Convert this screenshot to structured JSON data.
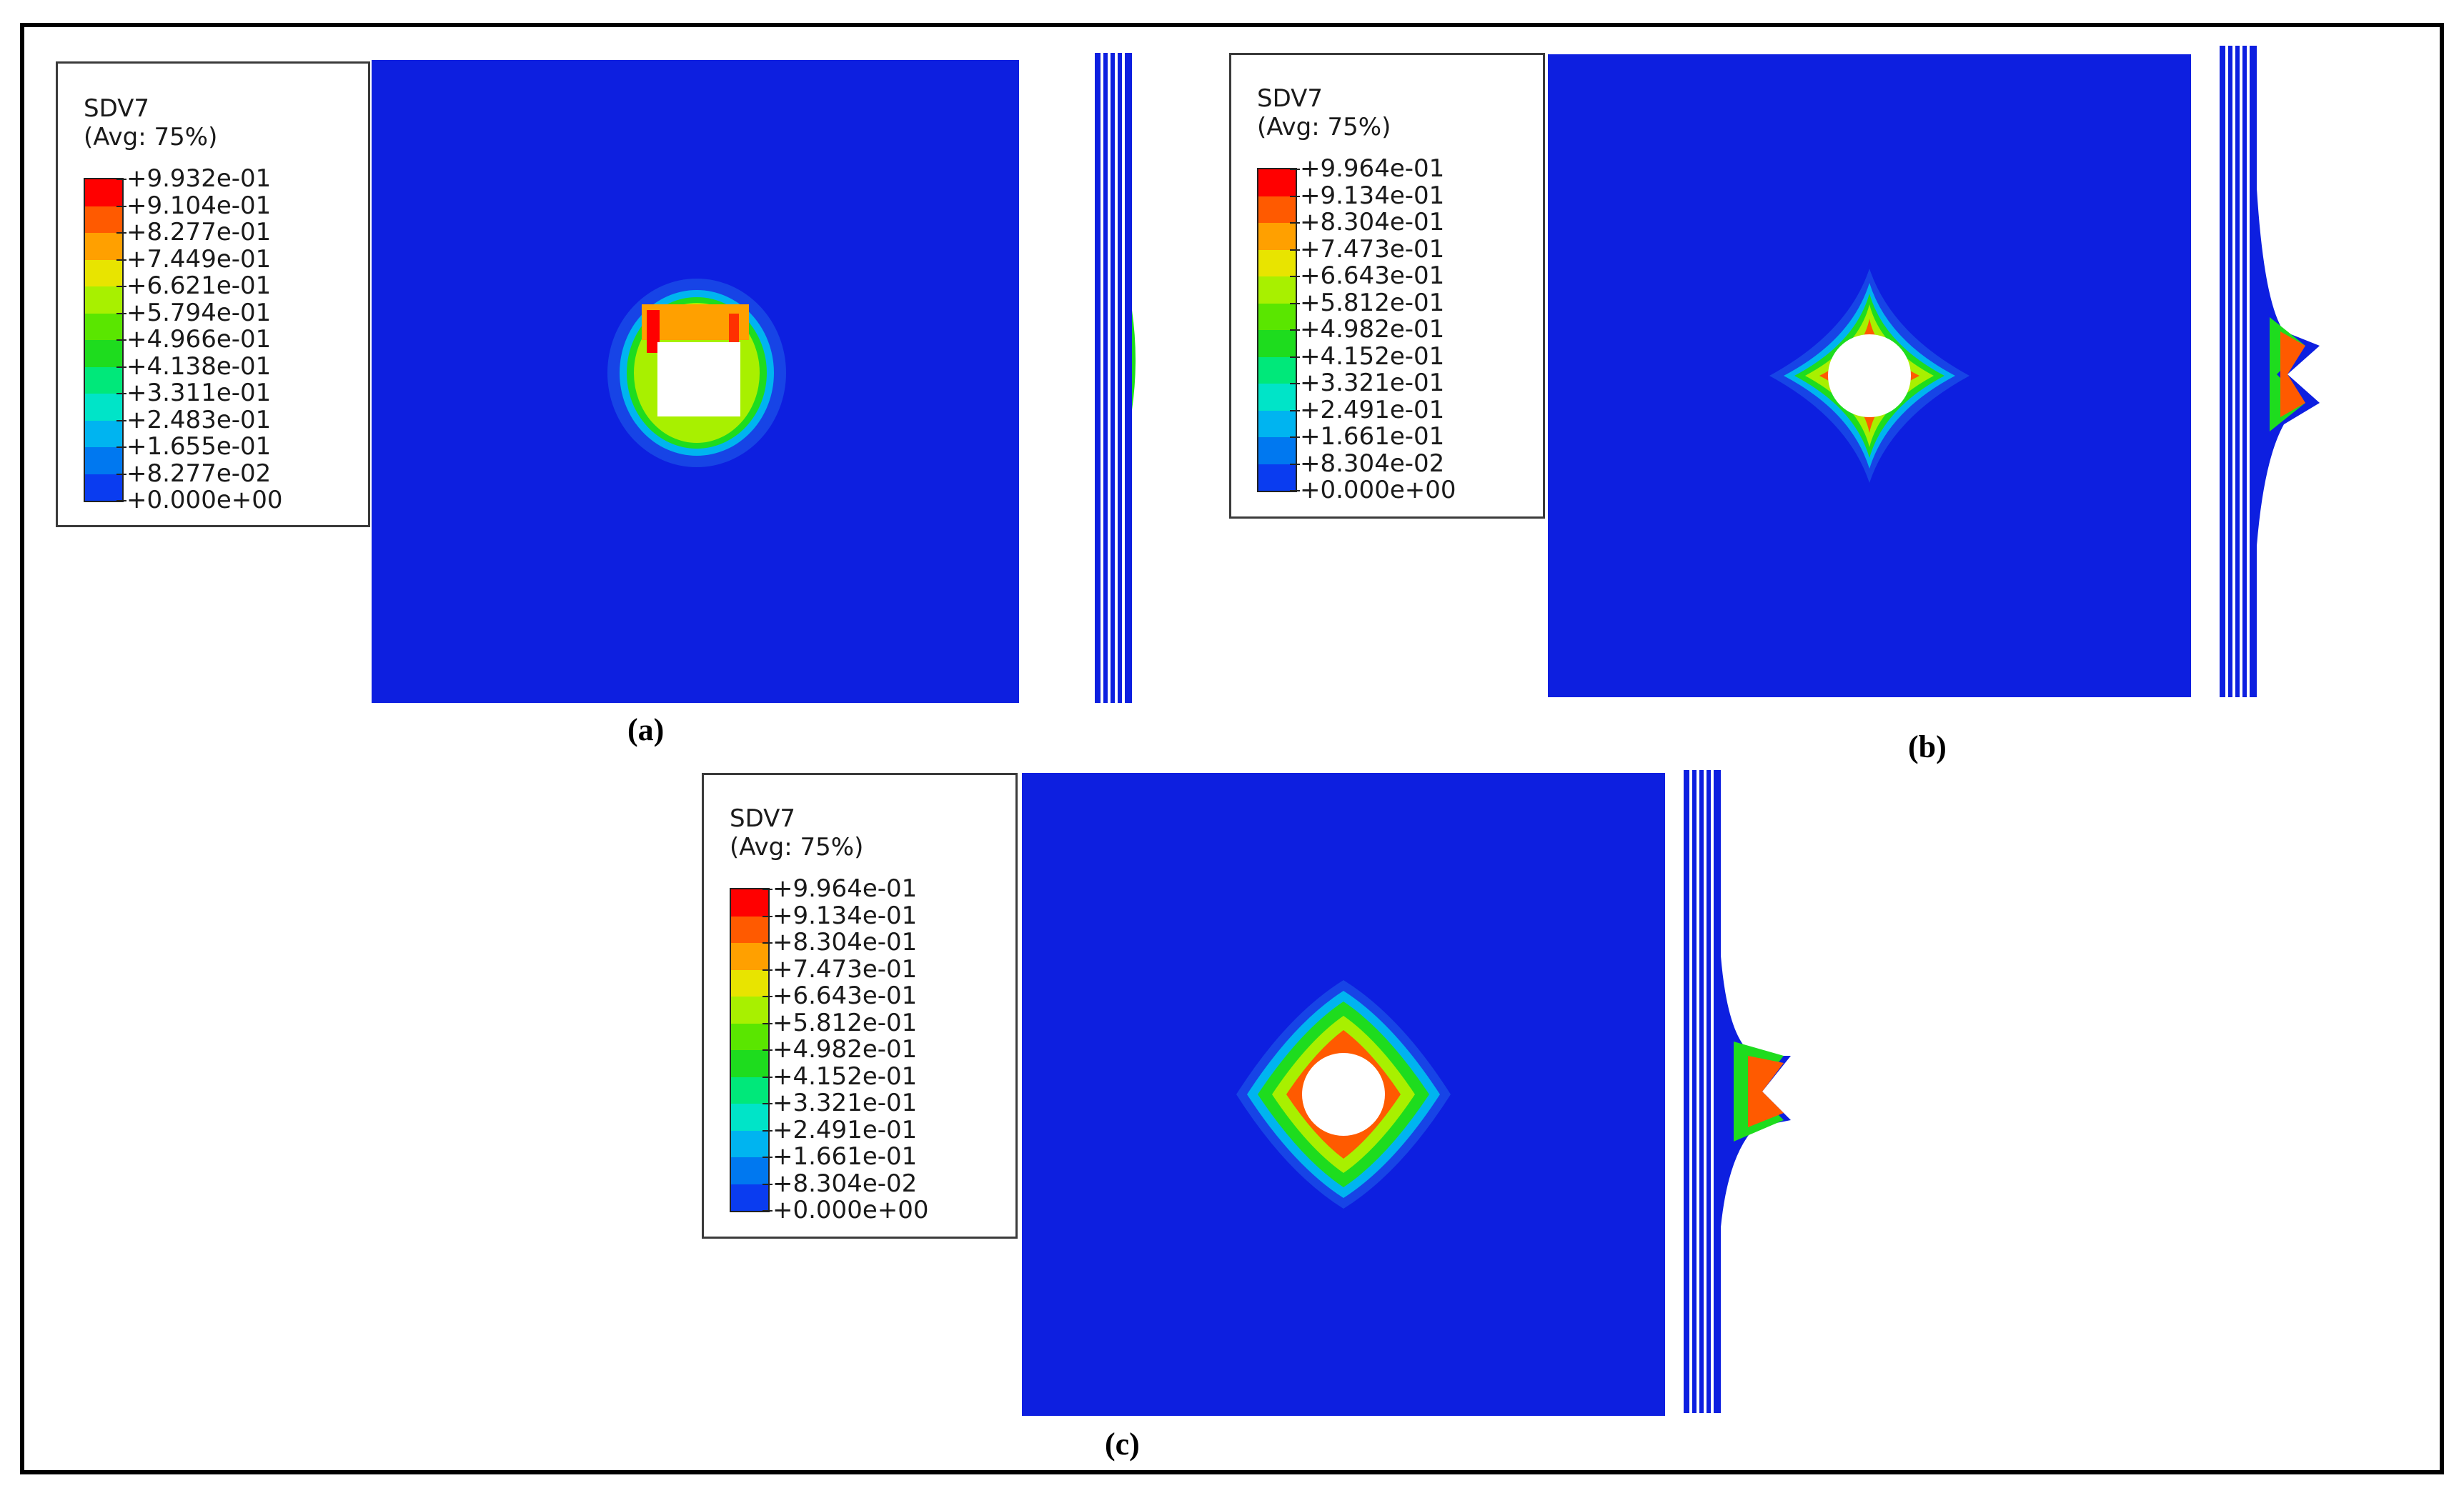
{
  "panels": [
    {
      "id": "a",
      "caption": "(a)",
      "legend": {
        "variable": "SDV7",
        "averaging": "(Avg: 75%)",
        "values": [
          "+9.932e-01",
          "+9.104e-01",
          "+8.277e-01",
          "+7.449e-01",
          "+6.621e-01",
          "+5.794e-01",
          "+4.966e-01",
          "+4.138e-01",
          "+3.311e-01",
          "+2.483e-01",
          "+1.655e-01",
          "+8.277e-02",
          "+0.000e+00"
        ]
      }
    },
    {
      "id": "b",
      "caption": "(b)",
      "legend": {
        "variable": "SDV7",
        "averaging": "(Avg: 75%)",
        "values": [
          "+9.964e-01",
          "+9.134e-01",
          "+8.304e-01",
          "+7.473e-01",
          "+6.643e-01",
          "+5.812e-01",
          "+4.982e-01",
          "+4.152e-01",
          "+3.321e-01",
          "+2.491e-01",
          "+1.661e-01",
          "+8.304e-02",
          "+0.000e+00"
        ]
      }
    },
    {
      "id": "c",
      "caption": "(c)",
      "legend": {
        "variable": "SDV7",
        "averaging": "(Avg: 75%)",
        "values": [
          "+9.964e-01",
          "+9.134e-01",
          "+8.304e-01",
          "+7.473e-01",
          "+6.643e-01",
          "+5.812e-01",
          "+4.982e-01",
          "+4.152e-01",
          "+3.321e-01",
          "+2.491e-01",
          "+1.661e-01",
          "+8.304e-02",
          "+0.000e+00"
        ]
      }
    }
  ],
  "colormap": [
    "#ff0000",
    "#ff5a00",
    "#ffa000",
    "#e8e400",
    "#a8f000",
    "#5ae600",
    "#1edc1e",
    "#00e87a",
    "#00e4c8",
    "#00b4f0",
    "#0078f0",
    "#0a3cf0",
    "#0000e0"
  ],
  "plate_color": "#0d1fe0"
}
